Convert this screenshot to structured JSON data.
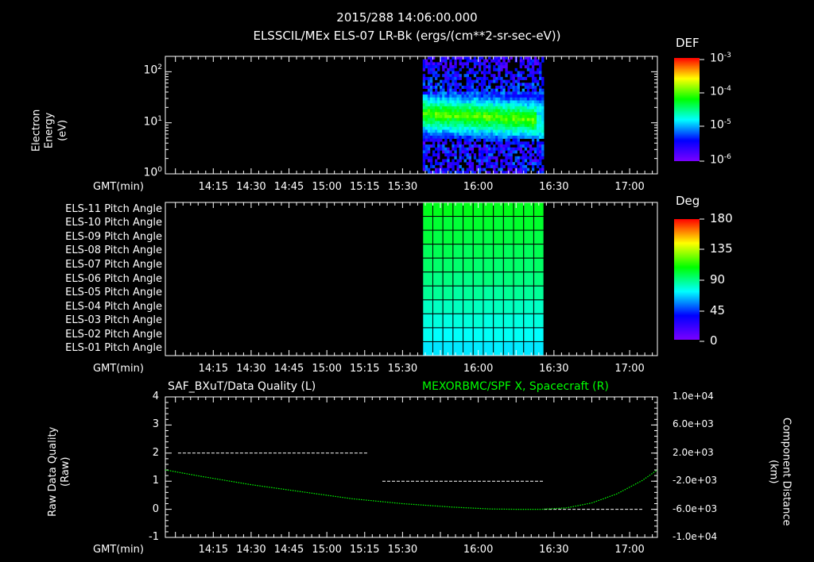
{
  "header": {
    "timestamp": "2015/288 14:06:00.000",
    "title": "ELSSCIL/MEx ELS-07 LR-Bk  (ergs/(cm**2-sr-sec-eV))"
  },
  "time_axis": {
    "label": "GMT(min)",
    "ticks": [
      "14:15",
      "14:30",
      "14:45",
      "15:00",
      "15:15",
      "15:30",
      "16:00",
      "16:30",
      "17:00"
    ],
    "tick_minutes": [
      855,
      870,
      885,
      900,
      915,
      930,
      960,
      990,
      1020
    ],
    "range_minutes": [
      836,
      1031
    ],
    "data_span_minutes": [
      938,
      986
    ]
  },
  "chart_data": [
    {
      "type": "heatmap",
      "name": "energy-spectrogram",
      "ylabel": "Electron Energy\n(eV)",
      "yscale": "log",
      "ylim": [
        1,
        200
      ],
      "y_ticks": [
        {
          "value": 1,
          "base": "10",
          "exp": "0"
        },
        {
          "value": 10,
          "base": "10",
          "exp": "1"
        },
        {
          "value": 100,
          "base": "10",
          "exp": "2"
        }
      ],
      "colorbar": {
        "label": "DEF",
        "scale": "log",
        "range": [
          1e-06,
          0.001
        ],
        "ticks": [
          {
            "base": "10",
            "exp": "-3"
          },
          {
            "base": "10",
            "exp": "-4"
          },
          {
            "base": "10",
            "exp": "-5"
          },
          {
            "base": "10",
            "exp": "-6"
          }
        ]
      },
      "peak_energy_eV": [
        15,
        11
      ],
      "colors": [
        "#7a00ff",
        "#0000ff",
        "#00ffff",
        "#00ff00",
        "#ffff00",
        "#ff0000"
      ]
    },
    {
      "type": "heatmap",
      "name": "pitch-angle",
      "rows": [
        "ELS-11 Pitch Angle",
        "ELS-10 Pitch Angle",
        "ELS-09 Pitch Angle",
        "ELS-08 Pitch Angle",
        "ELS-07 Pitch Angle",
        "ELS-06 Pitch Angle",
        "ELS-05 Pitch Angle",
        "ELS-04 Pitch Angle",
        "ELS-03 Pitch Angle",
        "ELS-02 Pitch Angle",
        "ELS-01 Pitch Angle"
      ],
      "row_values_deg": [
        104,
        101,
        99,
        96,
        93,
        90,
        86,
        81,
        77,
        73,
        69
      ],
      "colorbar": {
        "label": "Deg",
        "range": [
          0,
          180
        ],
        "ticks": [
          "180",
          "135",
          "90",
          "45",
          "0"
        ]
      }
    },
    {
      "type": "line",
      "name": "quality-and-distance",
      "title_left": "SAF_BXuT/Data Quality (L)",
      "title_right": "MEXORBMC/SPF X, Spacecraft (R)",
      "ylabel_left": "Raw Data Quality\n(Raw)",
      "ylabel_right": "Component Distance\n(km)",
      "ylim_left": [
        -1,
        4
      ],
      "left_ticks": [
        "4",
        "3",
        "2",
        "1",
        "0",
        "-1"
      ],
      "ylim_right": [
        -10000,
        10000
      ],
      "right_ticks": [
        "1.0e+04",
        "6.0e+03",
        "2.0e+03",
        "-2.0e+03",
        "-6.0e+03",
        "-1.0e+04"
      ],
      "series": [
        {
          "axis": "left",
          "color": "#ffffff",
          "style": "dashed",
          "segments": [
            {
              "x": [
                841,
                916
              ],
              "y": 2
            },
            {
              "x": [
                922,
                986
              ],
              "y": 1
            },
            {
              "x": [
                986,
                1025
              ],
              "y": 0
            }
          ]
        },
        {
          "axis": "right",
          "color": "#00ff00",
          "style": "dotted",
          "x": [
            836,
            850,
            870,
            890,
            910,
            930,
            950,
            965,
            975,
            985,
            995,
            1005,
            1015,
            1025,
            1031
          ],
          "y": [
            -400,
            -1300,
            -2500,
            -3500,
            -4500,
            -5200,
            -5700,
            -5950,
            -6000,
            -6000,
            -5800,
            -5100,
            -3800,
            -1900,
            -400
          ]
        }
      ]
    }
  ],
  "colors": {
    "background": "#000000",
    "axis": "#ffffff",
    "green_series": "#00ff00",
    "grid_cells": "#000000"
  }
}
